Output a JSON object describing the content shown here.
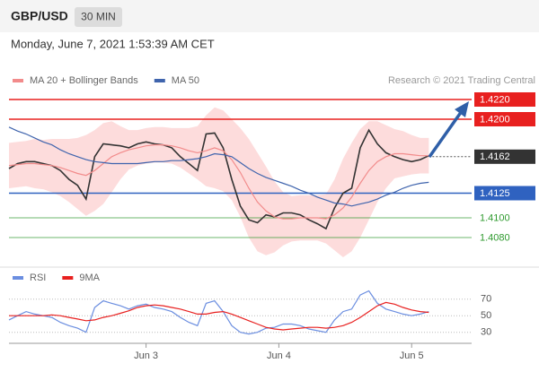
{
  "header": {
    "symbol": "GBP/USD",
    "interval": "30 MIN",
    "timestamp": "Monday, June 7, 2021 1:53:39 AM CET"
  },
  "chart_data": [
    {
      "type": "line",
      "source": "Research © 2021 Trading Central",
      "xlim": [
        0,
        54
      ],
      "ylim": [
        1.4055,
        1.423
      ],
      "series": [
        {
          "color": "#333333",
          "values": [
            1.415,
            1.4155,
            1.4157,
            1.4157,
            1.4155,
            1.4153,
            1.4148,
            1.4139,
            1.4133,
            1.4119,
            1.4162,
            1.4175,
            1.4174,
            1.4173,
            1.4171,
            1.4175,
            1.4177,
            1.4175,
            1.4174,
            1.4171,
            1.4162,
            1.4155,
            1.4148,
            1.4185,
            1.4186,
            1.4171,
            1.4139,
            1.4112,
            1.4098,
            1.4095,
            1.4103,
            1.4101,
            1.4105,
            1.4105,
            1.4103,
            1.4098,
            1.4094,
            1.4089,
            1.411,
            1.4125,
            1.413,
            1.4171,
            1.4189,
            1.4175,
            1.4166,
            1.4162,
            1.4159,
            1.4157,
            1.4159,
            1.4163
          ]
        },
        {
          "name": "MA 20 + Bollinger Bands",
          "color": "#f28b8b",
          "band_color": "#fdd6d6",
          "values": [
            1.4153,
            1.4154,
            1.4155,
            1.4155,
            1.4154,
            1.4153,
            1.4151,
            1.4148,
            1.4145,
            1.4143,
            1.4148,
            1.4155,
            1.4162,
            1.4166,
            1.4169,
            1.4171,
            1.4173,
            1.4174,
            1.4174,
            1.4173,
            1.4171,
            1.4168,
            1.4166,
            1.4168,
            1.4171,
            1.4168,
            1.4159,
            1.4146,
            1.413,
            1.4116,
            1.4107,
            1.4101,
            1.4099,
            1.4099,
            1.41,
            1.41,
            1.41,
            1.4099,
            1.4103,
            1.411,
            1.4121,
            1.4135,
            1.4148,
            1.4157,
            1.4162,
            1.4165,
            1.4165,
            1.4164,
            1.4163,
            1.4163
          ],
          "band_upper": [
            1.4176,
            1.4177,
            1.4178,
            1.418,
            1.4179,
            1.418,
            1.418,
            1.418,
            1.4181,
            1.4184,
            1.4189,
            1.4196,
            1.4198,
            1.4193,
            1.4189,
            1.4189,
            1.4191,
            1.4192,
            1.4192,
            1.4191,
            1.4191,
            1.4191,
            1.4193,
            1.4204,
            1.4212,
            1.4209,
            1.42,
            1.4191,
            1.418,
            1.4166,
            1.4152,
            1.4137,
            1.4126,
            1.4122,
            1.4123,
            1.4123,
            1.4123,
            1.4124,
            1.4139,
            1.416,
            1.4176,
            1.419,
            1.4198,
            1.4198,
            1.4194,
            1.419,
            1.4188,
            1.4184,
            1.4181,
            1.4181
          ],
          "band_lower": [
            1.413,
            1.4131,
            1.4132,
            1.413,
            1.4129,
            1.4126,
            1.4122,
            1.4116,
            1.4109,
            1.4102,
            1.4107,
            1.4114,
            1.4126,
            1.4139,
            1.4149,
            1.4153,
            1.4155,
            1.4156,
            1.4156,
            1.4155,
            1.4151,
            1.4145,
            1.4139,
            1.4132,
            1.413,
            1.4127,
            1.4118,
            1.4101,
            1.408,
            1.4066,
            1.4062,
            1.4065,
            1.4072,
            1.4076,
            1.4077,
            1.4077,
            1.4077,
            1.4074,
            1.4067,
            1.406,
            1.4066,
            1.408,
            1.4098,
            1.4116,
            1.413,
            1.414,
            1.4142,
            1.4144,
            1.4145,
            1.4145
          ]
        },
        {
          "name": "MA 50",
          "color": "#3f64ad",
          "values": [
            1.4192,
            1.4188,
            1.4185,
            1.4181,
            1.4177,
            1.4174,
            1.4169,
            1.4165,
            1.4162,
            1.4159,
            1.4157,
            1.4156,
            1.4155,
            1.4155,
            1.4155,
            1.4155,
            1.4156,
            1.4157,
            1.4157,
            1.4158,
            1.4158,
            1.4159,
            1.416,
            1.4162,
            1.4165,
            1.4164,
            1.4162,
            1.4156,
            1.415,
            1.4145,
            1.4141,
            1.4138,
            1.4135,
            1.4132,
            1.4128,
            1.4125,
            1.4121,
            1.4118,
            1.4115,
            1.4114,
            1.4112,
            1.4114,
            1.4116,
            1.4119,
            1.4123,
            1.4126,
            1.413,
            1.4133,
            1.4135,
            1.4136
          ]
        }
      ],
      "levels": [
        {
          "value": 1.422,
          "label": "1.4220",
          "color": "#e8201f",
          "style": "box"
        },
        {
          "value": 1.42,
          "label": "1.4200",
          "color": "#e8201f",
          "style": "box"
        },
        {
          "value": 1.4162,
          "label": "1.4162",
          "color": "#333333",
          "style": "current"
        },
        {
          "value": 1.4125,
          "label": "1.4125",
          "color": "#2f62c0",
          "style": "box"
        },
        {
          "value": 1.41,
          "label": "1.4100",
          "color": "#2e9a2e",
          "style": "text"
        },
        {
          "value": 1.408,
          "label": "1.4080",
          "color": "#2e9a2e",
          "style": "text"
        }
      ]
    },
    {
      "type": "line",
      "xlim": [
        0,
        54
      ],
      "ylim": [
        20,
        87
      ],
      "yticks": [
        30,
        50,
        70
      ],
      "grid": true,
      "xticks": [
        {
          "value": 16,
          "label": "Jun 3"
        },
        {
          "value": 31.5,
          "label": "Jun 4"
        },
        {
          "value": 47,
          "label": "Jun 5"
        }
      ],
      "series": [
        {
          "name": "RSI",
          "color": "#6b8ee0",
          "values": [
            45,
            50,
            55,
            52,
            50,
            48,
            42,
            38,
            35,
            30,
            60,
            68,
            65,
            62,
            58,
            62,
            64,
            60,
            58,
            55,
            48,
            42,
            38,
            65,
            68,
            55,
            38,
            30,
            28,
            30,
            35,
            36,
            40,
            40,
            38,
            34,
            32,
            30,
            45,
            55,
            58,
            75,
            80,
            65,
            58,
            55,
            52,
            50,
            52,
            55
          ]
        },
        {
          "name": "9MA",
          "color": "#e8201f",
          "values": [
            50,
            50,
            50,
            50,
            50,
            51,
            50,
            48,
            46,
            44,
            45,
            48,
            50,
            53,
            56,
            60,
            62,
            63,
            62,
            60,
            58,
            55,
            52,
            52,
            54,
            55,
            52,
            48,
            44,
            40,
            36,
            34,
            33,
            34,
            35,
            36,
            36,
            35,
            36,
            38,
            42,
            48,
            55,
            62,
            66,
            64,
            60,
            57,
            55,
            54
          ]
        }
      ]
    }
  ]
}
